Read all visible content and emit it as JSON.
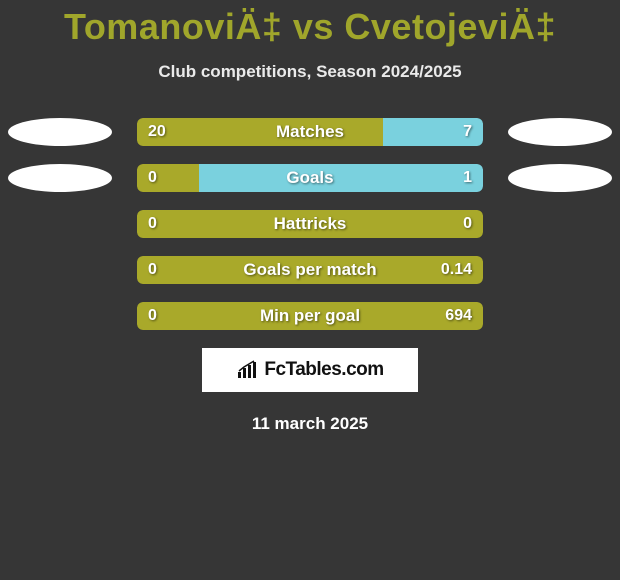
{
  "header": {
    "title": "TomanoviÄ‡ vs CvetojeviÄ‡",
    "subtitle": "Club competitions, Season 2024/2025"
  },
  "colors": {
    "left": "#a9a92a",
    "right": "#7ad1de",
    "neutral": "#a9a92a",
    "background": "#363636",
    "text": "#ffffff",
    "title_color": "#a0a62b"
  },
  "avatars": {
    "row0_left": true,
    "row0_right": true,
    "row1_left": true,
    "row1_right": true
  },
  "stats": [
    {
      "label": "Matches",
      "left_value": "20",
      "right_value": "7",
      "left_num": 20,
      "right_num": 7,
      "left_pct": 71,
      "avatars": true
    },
    {
      "label": "Goals",
      "left_value": "0",
      "right_value": "1",
      "left_num": 0,
      "right_num": 1,
      "left_pct": 18,
      "avatars": true
    },
    {
      "label": "Hattricks",
      "left_value": "0",
      "right_value": "0",
      "left_num": 0,
      "right_num": 0,
      "solo": true
    },
    {
      "label": "Goals per match",
      "left_value": "0",
      "right_value": "0.14",
      "left_num": 0,
      "right_num": 0.14,
      "solo": true
    },
    {
      "label": "Min per goal",
      "left_value": "0",
      "right_value": "694",
      "left_num": 0,
      "right_num": 694,
      "solo": true
    }
  ],
  "footer": {
    "site_name": "FcTables.com",
    "date": "11 march 2025"
  }
}
